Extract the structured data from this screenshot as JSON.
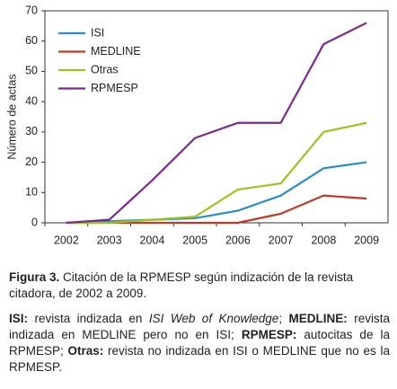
{
  "chart_data": {
    "type": "line",
    "y_label": "Número de actas",
    "categories": [
      "2002",
      "2003",
      "2004",
      "2005",
      "2006",
      "2007",
      "2008",
      "2009"
    ],
    "series": [
      {
        "name": "ISI",
        "color": "#2a8dc8",
        "values": [
          0,
          0.5,
          1,
          1.5,
          4,
          9,
          18,
          20
        ]
      },
      {
        "name": "MEDLINE",
        "color": "#c0392b",
        "values": [
          0,
          0,
          0,
          0,
          0,
          3,
          9,
          8
        ]
      },
      {
        "name": "Otras",
        "color": "#9ac31c",
        "values": [
          0,
          0,
          1,
          2,
          11,
          13,
          30,
          33
        ]
      },
      {
        "name": "RPMESP",
        "color": "#7b2a8e",
        "values": [
          0,
          1,
          14,
          28,
          33,
          33,
          59,
          66
        ]
      }
    ],
    "ylim": [
      0,
      70
    ],
    "yticks": [
      0,
      10,
      20,
      30,
      40,
      50,
      60,
      70
    ],
    "legend": "top-left"
  },
  "caption": {
    "figure": {
      "label": "Figura 3.",
      "text": " Citación de la RPMESP según indización de la revista citadora, de 2002 a 2009."
    },
    "notes": [
      {
        "text": "ISI:",
        "bold": true
      },
      {
        "text": " revista indizada en "
      },
      {
        "text": "ISI Web of Knowledge",
        "italic": true
      },
      {
        "text": "; "
      },
      {
        "text": "MEDLINE:",
        "bold": true
      },
      {
        "text": " revista indizada en MEDLINE pero no en ISI; "
      },
      {
        "text": "RPMESP:",
        "bold": true
      },
      {
        "text": " autocitas de la RPMESP; "
      },
      {
        "text": "Otras:",
        "bold": true
      },
      {
        "text": " revista no indizada en ISI o MEDLINE que no es la RPMESP."
      }
    ]
  }
}
